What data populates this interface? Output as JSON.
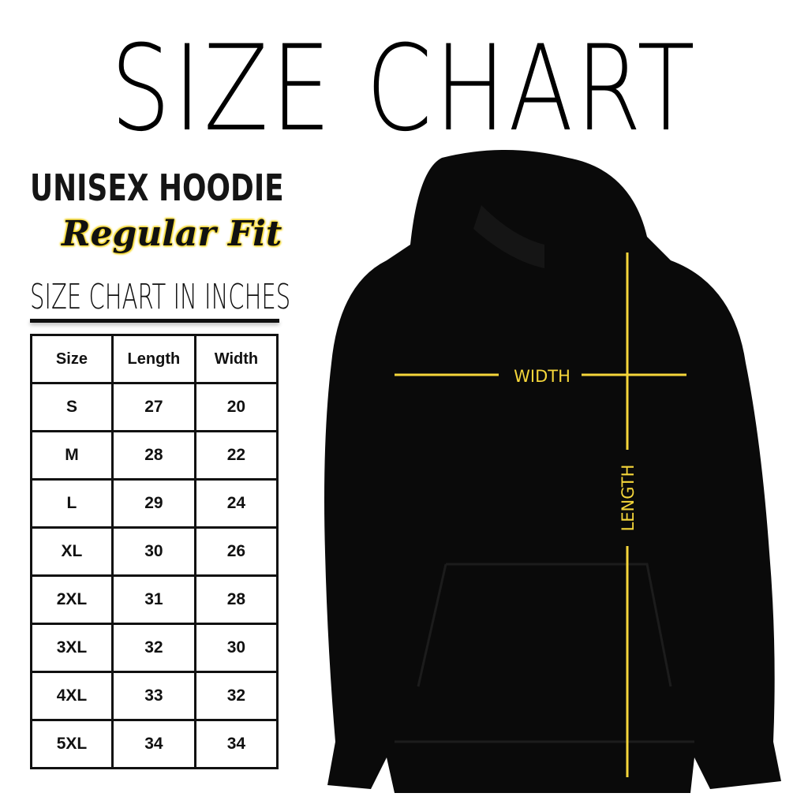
{
  "title": "SIZE CHART",
  "product": "UNISEX HOODIE",
  "fit": "Regular Fit",
  "unit_heading": "SIZE CHART IN INCHES",
  "table": {
    "headers": [
      "Size",
      "Length",
      "Width"
    ],
    "rows": [
      [
        "S",
        "27",
        "20"
      ],
      [
        "M",
        "28",
        "22"
      ],
      [
        "L",
        "29",
        "24"
      ],
      [
        "XL",
        "30",
        "26"
      ],
      [
        "2XL",
        "31",
        "28"
      ],
      [
        "3XL",
        "32",
        "30"
      ],
      [
        "4XL",
        "33",
        "32"
      ],
      [
        "5XL",
        "34",
        "34"
      ]
    ]
  },
  "diagram": {
    "width_label": "WIDTH",
    "length_label": "LENGTH",
    "line_color": "#f5d63a",
    "garment_color": "#0a0a0a"
  }
}
